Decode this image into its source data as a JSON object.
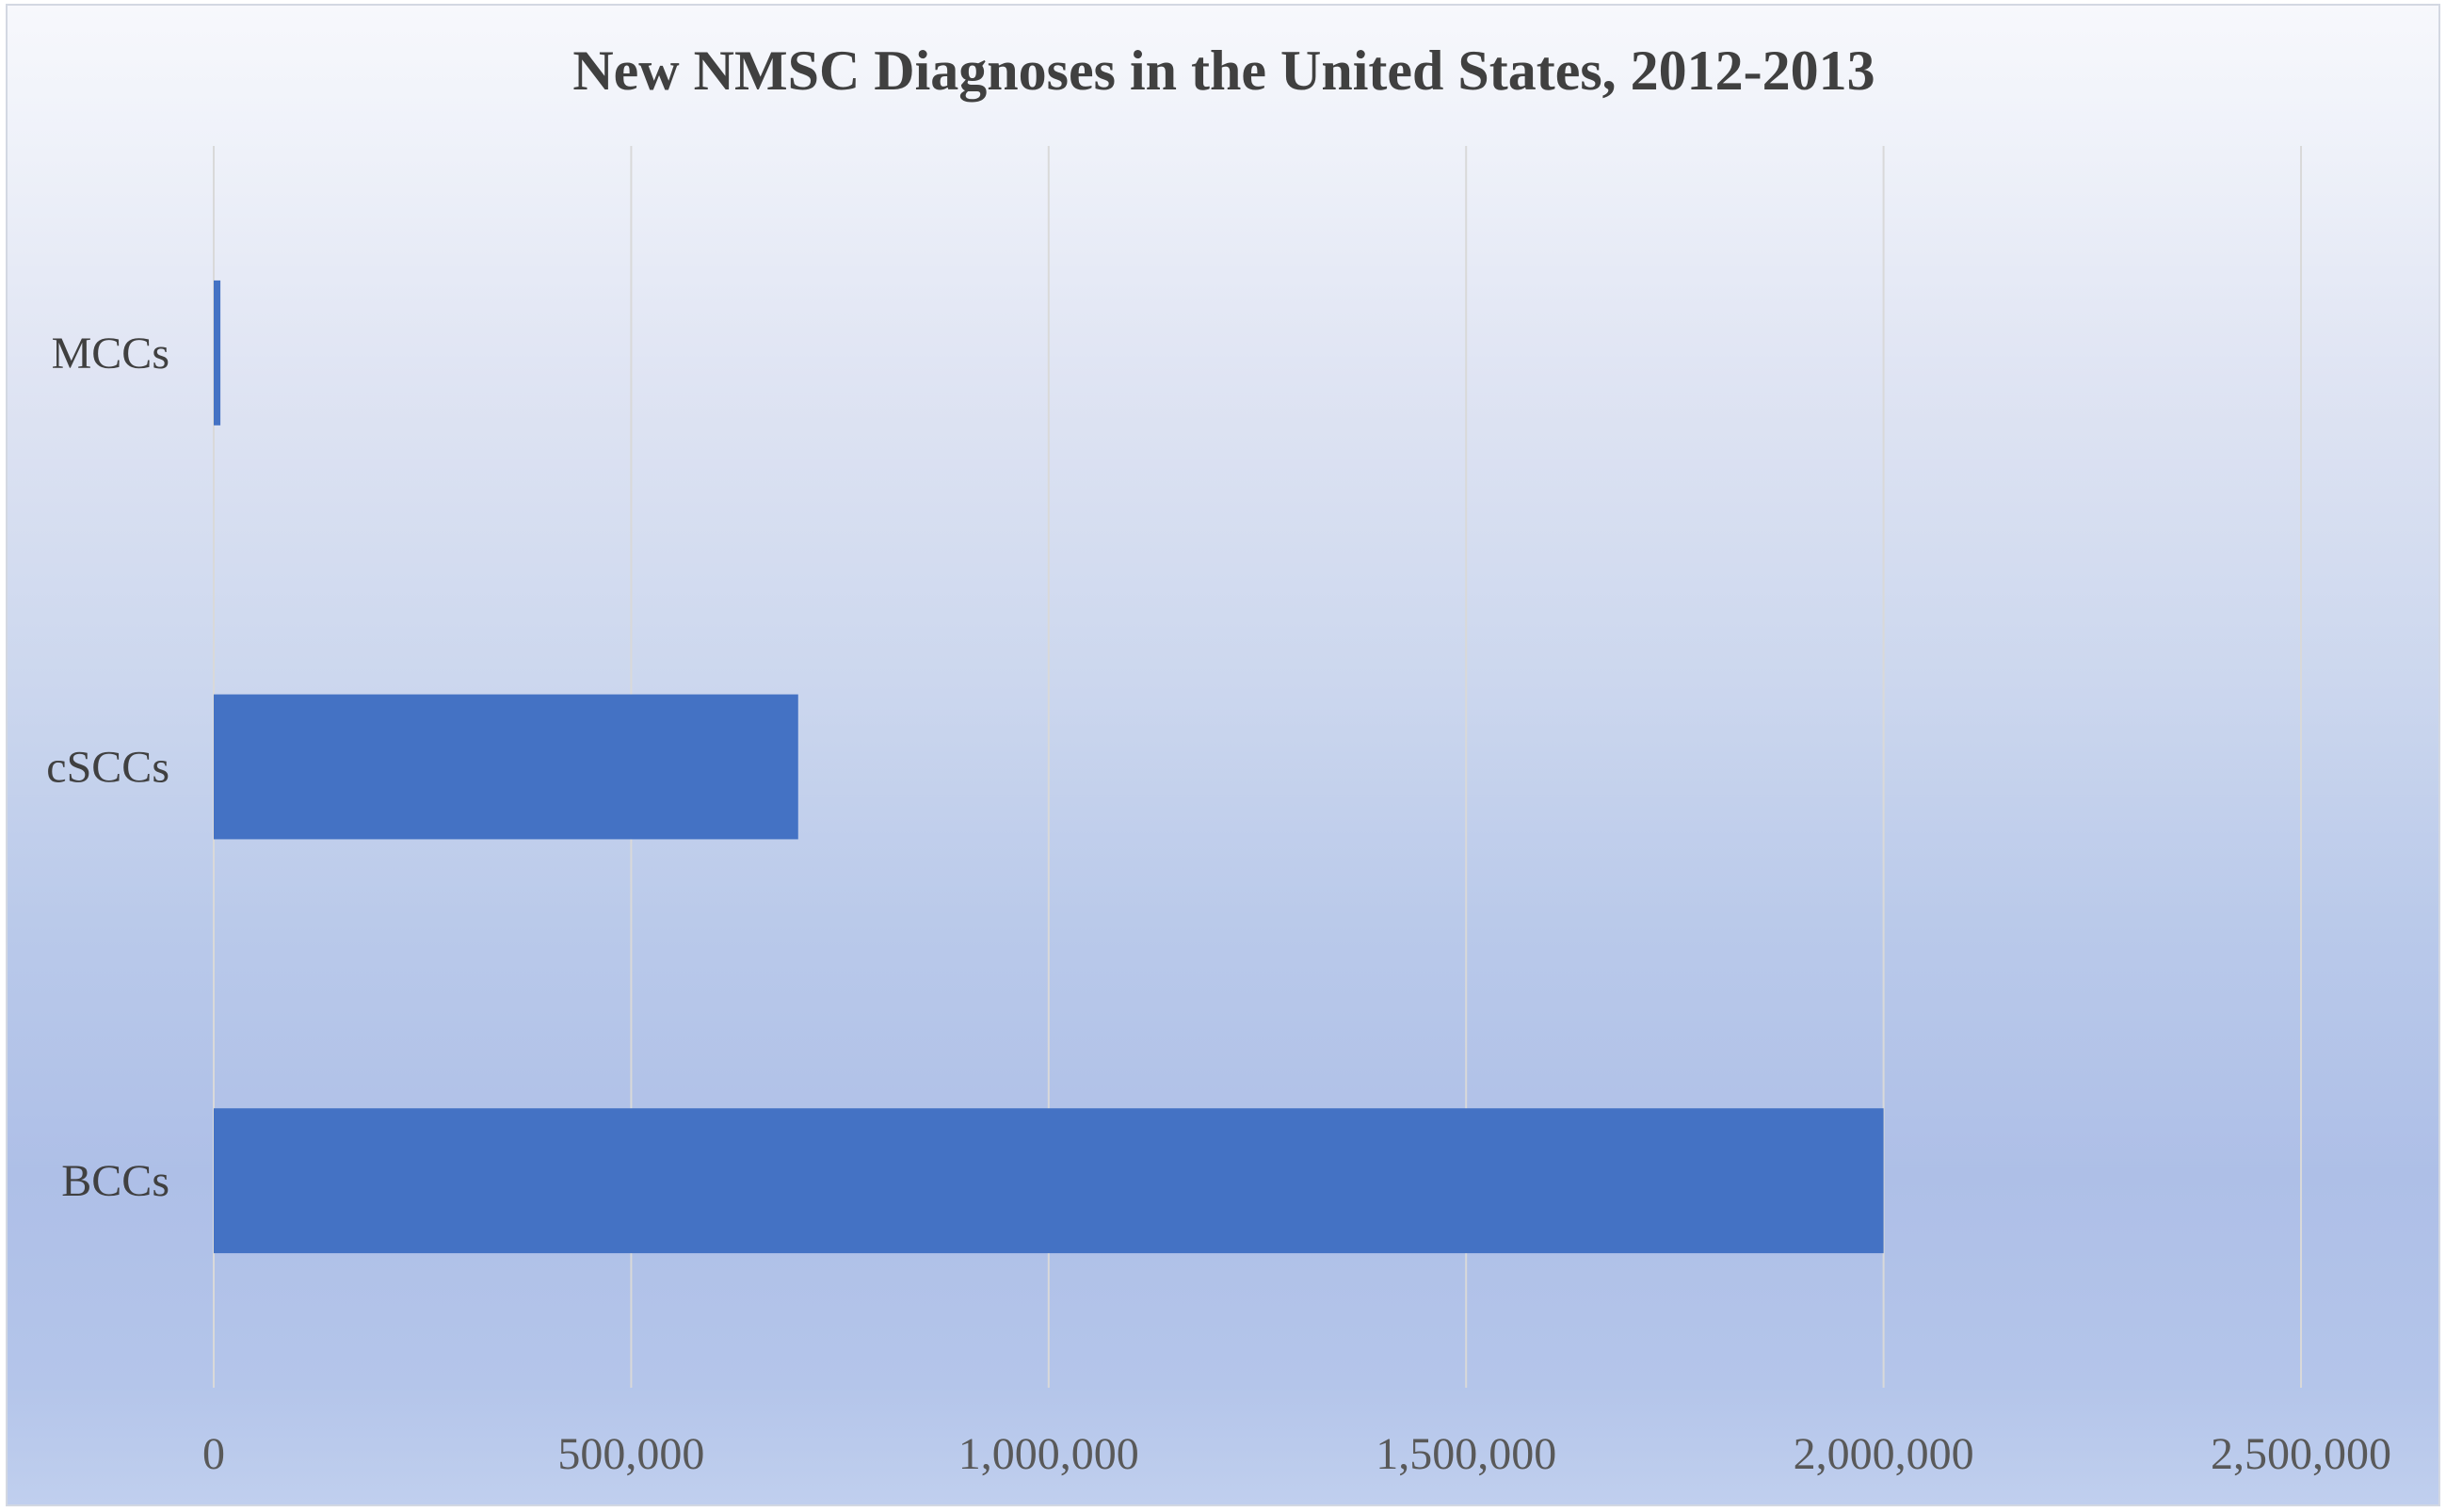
{
  "chart_data": {
    "type": "bar",
    "orientation": "horizontal",
    "title": "New NMSC Diagnoses in the United States, 2012-2013",
    "categories": [
      "MCCs",
      "cSCCs",
      "BCCs"
    ],
    "values": [
      8000,
      700000,
      2000000
    ],
    "xlim": [
      0,
      2500000
    ],
    "ticks": [
      0,
      500000,
      1000000,
      1500000,
      2000000,
      2500000
    ],
    "tick_labels": [
      "0",
      "500,000",
      "1,000,000",
      "1,500,000",
      "2,000,000",
      "2,500,000"
    ],
    "grid": true,
    "legend": false,
    "bar_color": "#4472c4"
  }
}
